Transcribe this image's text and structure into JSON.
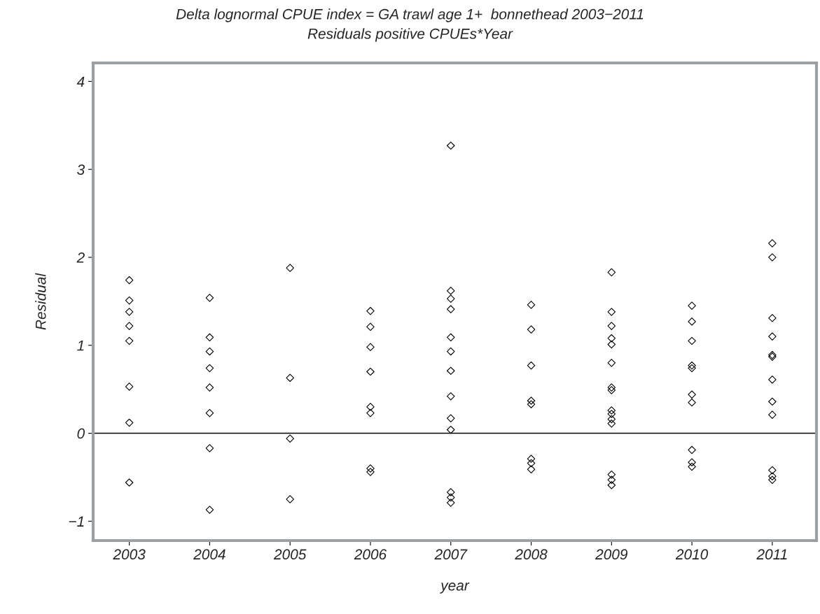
{
  "chart_data": {
    "type": "scatter",
    "title": "Delta lognormal CPUE index = GA trawl age 1+  bonnethead 2003−2011",
    "subtitle": "Residuals positive CPUEs*Year",
    "xlabel": "year",
    "ylabel": "Residual",
    "xlim": [
      2002.55,
      2011.55
    ],
    "xticks": [
      2003,
      2004,
      2005,
      2006,
      2007,
      2008,
      2009,
      2010,
      2011
    ],
    "series": [
      {
        "color": "#000000",
        "marker": "diamond",
        "x": [
          2003,
          2003,
          2003,
          2003,
          2003,
          2003,
          2003,
          2003,
          2004,
          2004,
          2004,
          2004,
          2004,
          2004,
          2004,
          2004,
          2005,
          2005,
          2005,
          2005,
          2006,
          2006,
          2006,
          2006,
          2006,
          2006,
          2006,
          2006,
          2007,
          2007,
          2007,
          2007,
          2007,
          2007,
          2007,
          2007,
          2007,
          2007,
          2007,
          2007,
          2007,
          2008,
          2008,
          2008,
          2008,
          2008,
          2008,
          2008,
          2008,
          2009,
          2009,
          2009,
          2009,
          2009,
          2009,
          2009,
          2009,
          2009,
          2009,
          2009,
          2009,
          2009,
          2009,
          2009,
          2010,
          2010,
          2010,
          2010,
          2010,
          2010,
          2010,
          2010,
          2010,
          2010,
          2011,
          2011,
          2011,
          2011,
          2011,
          2011,
          2011,
          2011,
          2011,
          2011,
          2011,
          2011
        ],
        "values": [
          1.74,
          1.51,
          1.38,
          1.22,
          1.05,
          0.53,
          0.12,
          -0.56,
          1.54,
          1.09,
          0.93,
          0.74,
          0.52,
          0.23,
          -0.17,
          -0.87,
          1.88,
          0.63,
          -0.06,
          -0.75,
          1.39,
          1.21,
          0.98,
          0.7,
          0.3,
          0.23,
          -0.4,
          -0.44,
          3.27,
          1.62,
          1.53,
          1.41,
          1.09,
          0.93,
          0.71,
          0.42,
          0.17,
          0.04,
          -0.67,
          -0.73,
          -0.79,
          1.46,
          1.18,
          0.77,
          0.37,
          0.33,
          -0.29,
          -0.34,
          -0.41,
          1.83,
          1.38,
          1.22,
          1.08,
          1.01,
          0.8,
          0.52,
          0.49,
          0.26,
          0.22,
          0.16,
          0.11,
          -0.47,
          -0.53,
          -0.59,
          1.45,
          1.27,
          1.05,
          0.77,
          0.74,
          0.44,
          0.35,
          -0.19,
          -0.33,
          -0.38,
          2.16,
          2.0,
          1.31,
          1.1,
          0.89,
          0.87,
          0.61,
          0.36,
          0.21,
          -0.42,
          -0.49,
          -0.53
        ]
      }
    ],
    "ylim": [
      -1.22,
      4.21
    ],
    "yticks": [
      {
        "value": -1,
        "label": "−1"
      },
      0,
      1,
      2,
      3,
      4
    ],
    "ref_lines": [
      {
        "axis": "y",
        "value": 0,
        "color": "#000000"
      }
    ],
    "grid": false,
    "legend": false
  }
}
